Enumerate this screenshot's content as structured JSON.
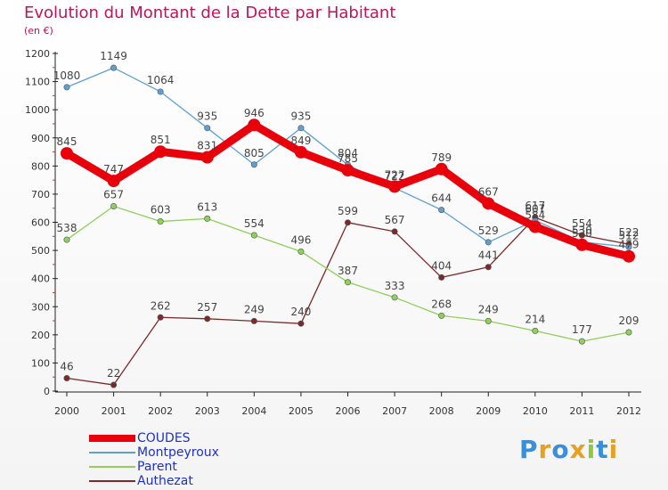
{
  "chart_data": {
    "type": "line",
    "title": "Evolution du Montant de la Dette par Habitant",
    "subtitle": "(en €)",
    "x": [
      "2000",
      "2001",
      "2002",
      "2003",
      "2004",
      "2005",
      "2006",
      "2007",
      "2008",
      "2009",
      "2010",
      "2011",
      "2012"
    ],
    "ylim": [
      0,
      1200
    ],
    "yticks": [
      0,
      100,
      200,
      300,
      400,
      500,
      600,
      700,
      800,
      900,
      1000,
      1100,
      1200
    ],
    "grid": false,
    "legend_position": "bottom-left",
    "series": [
      {
        "name": "COUDES",
        "color": "#e8000b",
        "values": [
          845,
          747,
          851,
          831,
          946,
          849,
          785,
          727,
          789,
          667,
          584,
          520,
          479
        ],
        "labels": [
          "845",
          "747",
          "851",
          "831",
          "946",
          "849",
          "785",
          "727",
          "789",
          "667",
          "584",
          "520",
          "479"
        ]
      },
      {
        "name": "Montpeyroux",
        "color": "#5fa0d4",
        "values": [
          1080,
          1149,
          1064,
          935,
          805,
          935,
          804,
          722,
          644,
          529,
          607,
          530,
          512
        ],
        "labels": [
          "1080",
          "1149",
          "1064",
          "935",
          "805",
          "935",
          "804",
          "722",
          "644",
          "529",
          "607",
          "530",
          "512"
        ]
      },
      {
        "name": "Parent",
        "color": "#8ed05a",
        "values": [
          538,
          657,
          603,
          613,
          554,
          496,
          387,
          333,
          268,
          249,
          214,
          177,
          209
        ],
        "labels": [
          "538",
          "657",
          "603",
          "613",
          "554",
          "496",
          "387",
          "333",
          "268",
          "249",
          "214",
          "177",
          "209"
        ]
      },
      {
        "name": "Authezat",
        "color": "#7a2a2a",
        "values": [
          46,
          22,
          262,
          257,
          249,
          240,
          599,
          567,
          404,
          441,
          617,
          554,
          522
        ],
        "labels": [
          "46",
          "22",
          "262",
          "257",
          "249",
          "240",
          "599",
          "567",
          "404",
          "441",
          "617",
          "554",
          "522"
        ]
      }
    ]
  },
  "logo": {
    "letters": [
      "P",
      "r",
      "o",
      "x",
      "i",
      "t",
      "i"
    ],
    "colors": [
      "#3a8fd8",
      "#e8a020",
      "#3a8fd8",
      "#e8a020",
      "#8ec83c",
      "#3a8fd8",
      "#e8a020"
    ]
  }
}
